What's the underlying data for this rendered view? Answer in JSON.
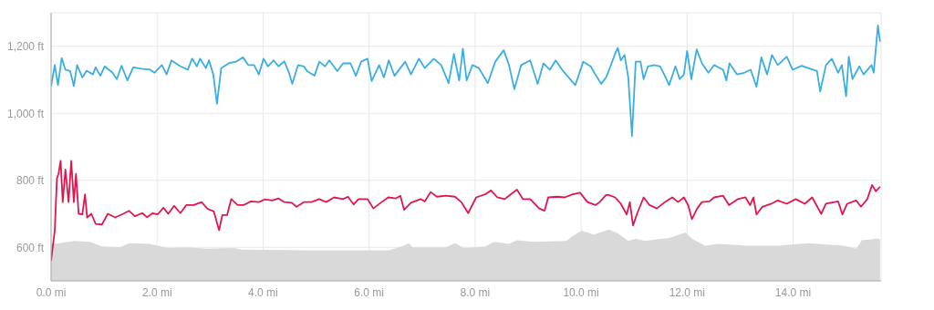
{
  "chart_data": {
    "type": "line",
    "xlim": [
      0,
      15.66
    ],
    "xticks": [
      {
        "value": 0,
        "label": "0.0 mi"
      },
      {
        "value": 2,
        "label": "2.0 mi"
      },
      {
        "value": 4,
        "label": "4.0 mi"
      },
      {
        "value": 6,
        "label": "6.0 mi"
      },
      {
        "value": 8,
        "label": "8.0 mi"
      },
      {
        "value": 10,
        "label": "10.0 mi"
      },
      {
        "value": 12,
        "label": "12.0 mi"
      },
      {
        "value": 14,
        "label": "14.0 mi"
      }
    ],
    "ylim": [
      500,
      1300
    ],
    "yticks": [
      {
        "value": 600,
        "label": "600 ft"
      },
      {
        "value": 800,
        "label": "800 ft"
      },
      {
        "value": 1000,
        "label": "1,000 ft"
      },
      {
        "value": 1200,
        "label": "1,200 ft"
      }
    ],
    "grid": true,
    "marker": "none",
    "line_style": "solid",
    "series": [
      {
        "type": "area",
        "color": "#d9d9d9",
        "x": [
          0,
          0.16,
          0.44,
          0.73,
          0.96,
          1.3,
          1.47,
          1.87,
          2.21,
          2.55,
          2.95,
          3.46,
          3.58,
          4.77,
          5.23,
          6.37,
          6.48,
          6.65,
          6.75,
          6.82,
          7.45,
          7.62,
          7.79,
          8.19,
          8.36,
          8.64,
          8.79,
          9.1,
          9.72,
          9.84,
          10.01,
          10.24,
          10.41,
          10.52,
          10.69,
          10.89,
          11.03,
          11.2,
          11.43,
          11.66,
          11.97,
          12.11,
          12.34,
          12.57,
          13.14,
          13.71,
          14.28,
          14.96,
          15.19,
          15.3,
          15.59,
          15.64
        ],
        "values": [
          610,
          612,
          619,
          616,
          603,
          600,
          612,
          610,
          598,
          600,
          596,
          598,
          593,
          591,
          591,
          591,
          596,
          605,
          612,
          600,
          600,
          612,
          598,
          602,
          616,
          610,
          621,
          616,
          619,
          633,
          650,
          638,
          647,
          653,
          642,
          619,
          626,
          619,
          624,
          628,
          644,
          624,
          605,
          610,
          605,
          605,
          612,
          605,
          596,
          621,
          626,
          624
        ]
      },
      {
        "color": "#3aaee3",
        "x": [
          0,
          0.07,
          0.13,
          0.2,
          0.27,
          0.36,
          0.43,
          0.49,
          0.59,
          0.67,
          0.79,
          0.84,
          0.93,
          1.01,
          1.16,
          1.24,
          1.33,
          1.44,
          1.55,
          1.7,
          1.87,
          1.95,
          2.09,
          2.18,
          2.27,
          2.44,
          2.58,
          2.66,
          2.75,
          2.81,
          2.92,
          2.98,
          3.06,
          3.13,
          3.21,
          3.35,
          3.49,
          3.62,
          3.72,
          3.83,
          3.92,
          4.01,
          4.09,
          4.2,
          4.29,
          4.4,
          4.49,
          4.55,
          4.66,
          4.77,
          4.83,
          4.97,
          5.06,
          5.17,
          5.25,
          5.4,
          5.51,
          5.65,
          5.75,
          5.85,
          5.97,
          6.05,
          6.19,
          6.28,
          6.37,
          6.48,
          6.59,
          6.68,
          6.79,
          6.94,
          7.05,
          7.22,
          7.36,
          7.5,
          7.6,
          7.7,
          7.77,
          7.84,
          7.95,
          8.07,
          8.24,
          8.38,
          8.54,
          8.64,
          8.74,
          8.87,
          9.04,
          9.18,
          9.29,
          9.41,
          9.52,
          9.66,
          9.89,
          10.04,
          10.18,
          10.27,
          10.38,
          10.47,
          10.52,
          10.64,
          10.69,
          10.75,
          10.82,
          10.89,
          10.96,
          11.03,
          11.12,
          11.18,
          11.26,
          11.38,
          11.49,
          11.58,
          11.66,
          11.78,
          11.86,
          11.94,
          12.0,
          12.08,
          12.18,
          12.28,
          12.4,
          12.51,
          12.68,
          12.74,
          12.8,
          12.94,
          13.08,
          13.2,
          13.31,
          13.4,
          13.51,
          13.6,
          13.71,
          13.88,
          13.99,
          14.16,
          14.28,
          14.45,
          14.51,
          14.62,
          14.73,
          14.85,
          14.92,
          15.0,
          15.05,
          15.12,
          15.25,
          15.33,
          15.48,
          15.52,
          15.6,
          15.64
        ],
        "values": [
          1081,
          1144,
          1084,
          1165,
          1130,
          1126,
          1081,
          1144,
          1107,
          1127,
          1116,
          1137,
          1112,
          1140,
          1121,
          1102,
          1142,
          1098,
          1137,
          1133,
          1130,
          1121,
          1144,
          1116,
          1158,
          1140,
          1130,
          1163,
          1140,
          1163,
          1135,
          1158,
          1116,
          1028,
          1135,
          1149,
          1154,
          1167,
          1144,
          1144,
          1116,
          1163,
          1140,
          1158,
          1140,
          1155,
          1121,
          1088,
          1144,
          1140,
          1126,
          1112,
          1154,
          1140,
          1158,
          1126,
          1149,
          1149,
          1112,
          1154,
          1163,
          1096,
          1144,
          1107,
          1158,
          1112,
          1135,
          1154,
          1116,
          1163,
          1135,
          1163,
          1144,
          1090,
          1177,
          1098,
          1193,
          1098,
          1144,
          1135,
          1090,
          1154,
          1188,
          1144,
          1072,
          1144,
          1158,
          1088,
          1149,
          1130,
          1158,
          1126,
          1084,
          1154,
          1140,
          1116,
          1088,
          1107,
          1126,
          1177,
          1195,
          1158,
          1174,
          1107,
          932,
          1154,
          1154,
          1102,
          1140,
          1144,
          1140,
          1112,
          1084,
          1140,
          1102,
          1116,
          1186,
          1102,
          1191,
          1149,
          1121,
          1144,
          1130,
          1098,
          1149,
          1116,
          1121,
          1130,
          1079,
          1167,
          1116,
          1174,
          1144,
          1169,
          1130,
          1142,
          1135,
          1126,
          1065,
          1144,
          1163,
          1121,
          1144,
          1051,
          1169,
          1102,
          1140,
          1116,
          1144,
          1121,
          1262,
          1214
        ]
      },
      {
        "color": "#e0174f",
        "x": [
          0,
          0.07,
          0.11,
          0.14,
          0.18,
          0.22,
          0.27,
          0.33,
          0.38,
          0.43,
          0.47,
          0.52,
          0.59,
          0.64,
          0.68,
          0.76,
          0.84,
          0.96,
          1.07,
          1.21,
          1.36,
          1.47,
          1.58,
          1.72,
          1.81,
          1.92,
          2.01,
          2.12,
          2.21,
          2.32,
          2.44,
          2.55,
          2.69,
          2.84,
          2.95,
          3.07,
          3.17,
          3.23,
          3.32,
          3.4,
          3.52,
          3.63,
          3.77,
          3.92,
          4.03,
          4.17,
          4.29,
          4.4,
          4.54,
          4.63,
          4.77,
          4.91,
          5.06,
          5.19,
          5.34,
          5.51,
          5.6,
          5.71,
          5.8,
          5.97,
          6.08,
          6.22,
          6.36,
          6.51,
          6.59,
          6.66,
          6.79,
          6.97,
          7.05,
          7.16,
          7.28,
          7.45,
          7.62,
          7.74,
          7.87,
          8.02,
          8.19,
          8.3,
          8.42,
          8.56,
          8.67,
          8.79,
          8.9,
          9.04,
          9.21,
          9.31,
          9.38,
          9.55,
          9.69,
          9.84,
          9.98,
          10.12,
          10.27,
          10.35,
          10.47,
          10.52,
          10.64,
          10.75,
          10.86,
          10.92,
          10.98,
          11.06,
          11.18,
          11.29,
          11.43,
          11.58,
          11.72,
          11.83,
          11.94,
          12.02,
          12.09,
          12.19,
          12.28,
          12.42,
          12.51,
          12.68,
          12.79,
          12.96,
          13.1,
          13.19,
          13.25,
          13.31,
          13.42,
          13.59,
          13.71,
          13.88,
          14.05,
          14.22,
          14.36,
          14.53,
          14.62,
          14.85,
          14.93,
          15.02,
          15.19,
          15.28,
          15.4,
          15.49,
          15.56,
          15.64
        ],
        "values": [
          560,
          651,
          805,
          819,
          858,
          735,
          832,
          735,
          858,
          735,
          819,
          700,
          698,
          758,
          689,
          700,
          670,
          668,
          700,
          689,
          700,
          709,
          693,
          702,
          690,
          702,
          698,
          718,
          700,
          724,
          702,
          726,
          726,
          735,
          715,
          707,
          651,
          696,
          696,
          744,
          726,
          726,
          737,
          735,
          743,
          740,
          746,
          735,
          733,
          721,
          735,
          735,
          744,
          735,
          749,
          744,
          751,
          728,
          744,
          744,
          716,
          733,
          749,
          746,
          754,
          712,
          733,
          744,
          737,
          765,
          751,
          754,
          751,
          735,
          702,
          749,
          758,
          770,
          749,
          744,
          758,
          772,
          744,
          744,
          716,
          709,
          749,
          751,
          749,
          758,
          763,
          735,
          726,
          735,
          756,
          756,
          749,
          730,
          698,
          735,
          665,
          702,
          749,
          726,
          716,
          735,
          749,
          735,
          749,
          726,
          684,
          716,
          735,
          737,
          749,
          754,
          726,
          744,
          749,
          726,
          749,
          698,
          721,
          730,
          740,
          730,
          744,
          730,
          749,
          700,
          730,
          737,
          698,
          730,
          740,
          721,
          744,
          786,
          767,
          781
        ]
      }
    ]
  }
}
